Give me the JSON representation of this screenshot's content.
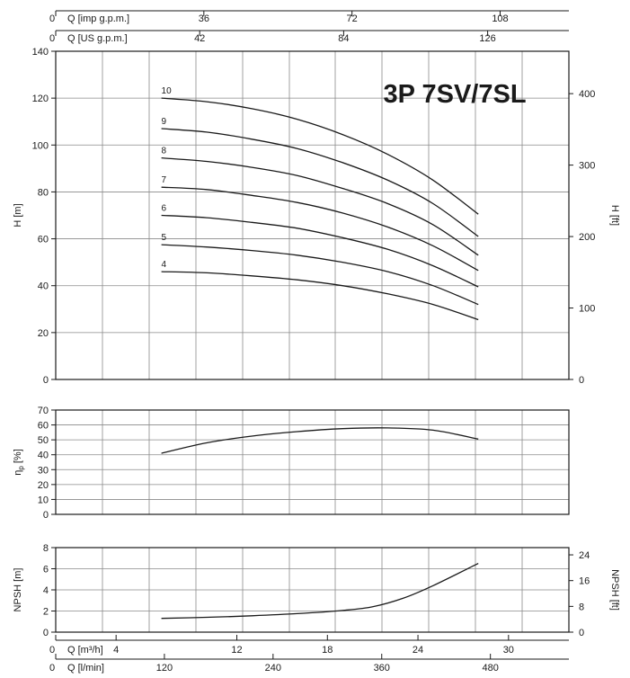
{
  "chart_data": [
    {
      "type": "line",
      "panel": "head",
      "title": "3P 7SV/7SL",
      "ylabel": "H [m]",
      "y2label": "H [ft]",
      "ylim": [
        0,
        140
      ],
      "yticks": [
        "0",
        "20",
        "40",
        "60",
        "80",
        "100",
        "120",
        "140"
      ],
      "y2ticks": [
        {
          "label": "0",
          "value": 0
        },
        {
          "label": "100",
          "value": 30.48
        },
        {
          "label": "200",
          "value": 60.96
        },
        {
          "label": "300",
          "value": 91.44
        },
        {
          "label": "400",
          "value": 121.92
        }
      ],
      "xlim": [
        0,
        34
      ],
      "x_unit": "Q [m³/h]",
      "grid": true,
      "series": [
        {
          "name": "10",
          "x": [
            7,
            10,
            13,
            16,
            19,
            22,
            25,
            28
          ],
          "values": [
            120,
            118.5,
            115.5,
            111,
            104.5,
            96,
            85,
            70.5
          ]
        },
        {
          "name": "9",
          "x": [
            7,
            10,
            13,
            16,
            19,
            22,
            25,
            28
          ],
          "values": [
            107,
            105.5,
            102.5,
            98.5,
            92.5,
            85,
            75,
            61
          ]
        },
        {
          "name": "8",
          "x": [
            7,
            10,
            13,
            16,
            19,
            22,
            25,
            28
          ],
          "values": [
            94.5,
            93,
            90.5,
            87,
            81.5,
            75,
            66,
            53
          ]
        },
        {
          "name": "7",
          "x": [
            7,
            10,
            13,
            16,
            19,
            22,
            25,
            28
          ],
          "values": [
            82,
            81,
            78.5,
            75.5,
            71,
            65,
            57,
            46.5
          ]
        },
        {
          "name": "6",
          "x": [
            7,
            10,
            13,
            16,
            19,
            22,
            25,
            28
          ],
          "values": [
            70,
            69,
            67,
            64.5,
            60.5,
            55.5,
            48.5,
            39.5
          ]
        },
        {
          "name": "5",
          "x": [
            7,
            10,
            13,
            16,
            19,
            22,
            25,
            28
          ],
          "values": [
            57.5,
            56.5,
            55,
            53,
            50,
            46,
            40,
            32
          ]
        },
        {
          "name": "4",
          "x": [
            7,
            10,
            13,
            16,
            19,
            22,
            25,
            28
          ],
          "values": [
            46,
            45.5,
            44.2,
            42.5,
            40,
            36.5,
            32,
            25.5
          ]
        }
      ]
    },
    {
      "type": "line",
      "panel": "efficiency",
      "ylabel": "η",
      "ylabel_sub": "p",
      "ylabel_unit": " [%]",
      "ylim": [
        0,
        70
      ],
      "yticks": [
        "0",
        "10",
        "20",
        "30",
        "40",
        "50",
        "60",
        "70"
      ],
      "xlim": [
        0,
        34
      ],
      "grid": true,
      "series": [
        {
          "x": [
            7,
            10,
            13,
            16,
            19,
            22,
            25,
            28
          ],
          "values": [
            41,
            48,
            52.5,
            55.5,
            57.5,
            58,
            56.5,
            50.5
          ]
        }
      ]
    },
    {
      "type": "line",
      "panel": "npsh",
      "ylabel": "NPSH [m]",
      "y2label": "NPSH [ft]",
      "ylim": [
        0,
        8
      ],
      "yticks": [
        "0",
        "2",
        "4",
        "6",
        "8"
      ],
      "y2ticks": [
        {
          "label": "0",
          "value": 0
        },
        {
          "label": "8",
          "value": 2.438
        },
        {
          "label": "16",
          "value": 4.877
        },
        {
          "label": "24",
          "value": 7.315
        }
      ],
      "xlim": [
        0,
        34
      ],
      "grid": true,
      "series": [
        {
          "x": [
            7,
            10,
            13,
            16,
            19,
            21,
            23,
            25,
            28
          ],
          "values": [
            1.3,
            1.4,
            1.55,
            1.75,
            2.05,
            2.4,
            3.2,
            4.4,
            6.5
          ]
        }
      ]
    }
  ],
  "axes": {
    "top_imp": {
      "label": "Q [imp g.p.m.]",
      "zero": "0",
      "ticks": [
        {
          "label": "36",
          "m3h": 9.815
        },
        {
          "label": "72",
          "m3h": 19.63
        },
        {
          "label": "108",
          "m3h": 29.445
        }
      ]
    },
    "top_us": {
      "label": "Q [US g.p.m.]",
      "zero": "0",
      "ticks": [
        {
          "label": "42",
          "m3h": 9.539
        },
        {
          "label": "84",
          "m3h": 19.078
        },
        {
          "label": "126",
          "m3h": 28.617
        }
      ]
    },
    "bottom_m3h": {
      "label": "Q [m³/h]",
      "zero": "0",
      "ticks": [
        {
          "label": "4",
          "m3h": 4
        },
        {
          "label": "12",
          "m3h": 12
        },
        {
          "label": "18",
          "m3h": 18
        },
        {
          "label": "24",
          "m3h": 24
        },
        {
          "label": "30",
          "m3h": 30
        }
      ]
    },
    "bottom_lmin": {
      "label": "Q [l/min]",
      "zero": "0",
      "ticks": [
        {
          "label": "120",
          "m3h": 7.2
        },
        {
          "label": "240",
          "m3h": 14.4
        },
        {
          "label": "360",
          "m3h": 21.6
        },
        {
          "label": "480",
          "m3h": 28.8
        }
      ]
    }
  }
}
